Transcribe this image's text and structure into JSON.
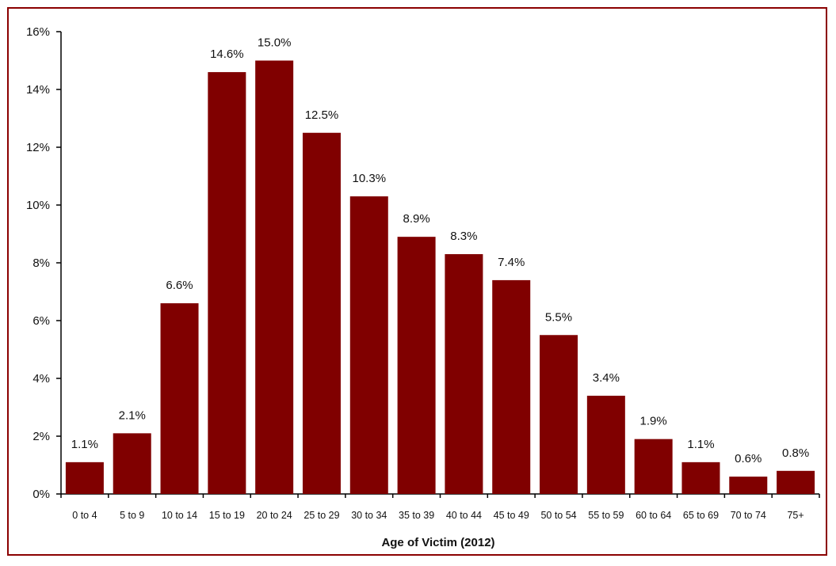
{
  "chart_data": {
    "type": "bar",
    "title": "",
    "xlabel": "Age of Victim (2012)",
    "ylabel": "",
    "ylim": [
      0,
      16
    ],
    "yticks": [
      "0%",
      "2%",
      "4%",
      "6%",
      "8%",
      "10%",
      "12%",
      "14%",
      "16%"
    ],
    "grid": false,
    "legend": null,
    "bar_color": "#800000",
    "border_color": "#8b0000",
    "categories": [
      "0 to 4",
      "5 to 9",
      "10 to 14",
      "15 to 19",
      "20 to 24",
      "25 to 29",
      "30 to 34",
      "35 to 39",
      "40 to 44",
      "45 to 49",
      "50 to 54",
      "55 to 59",
      "60 to 64",
      "65 to 69",
      "70 to 74",
      "75+"
    ],
    "values": [
      1.1,
      2.1,
      6.6,
      14.6,
      15.0,
      12.5,
      10.3,
      8.9,
      8.3,
      7.4,
      5.5,
      3.4,
      1.9,
      1.1,
      0.6,
      0.8
    ],
    "value_labels": [
      "1.1%",
      "2.1%",
      "6.6%",
      "14.6%",
      "15.0%",
      "12.5%",
      "10.3%",
      "8.9%",
      "8.3%",
      "7.4%",
      "5.5%",
      "3.4%",
      "1.9%",
      "1.1%",
      "0.6%",
      "0.8%"
    ]
  }
}
